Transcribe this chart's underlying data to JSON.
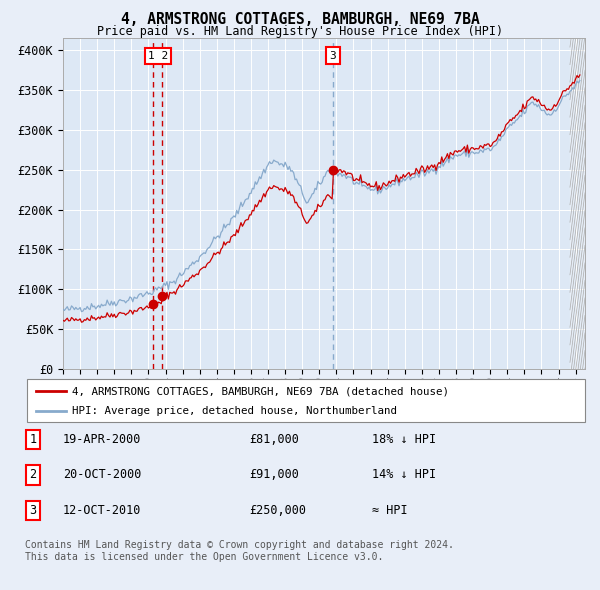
{
  "title": "4, ARMSTRONG COTTAGES, BAMBURGH, NE69 7BA",
  "subtitle": "Price paid vs. HM Land Registry's House Price Index (HPI)",
  "legend_property": "4, ARMSTRONG COTTAGES, BAMBURGH, NE69 7BA (detached house)",
  "legend_hpi": "HPI: Average price, detached house, Northumberland",
  "transactions": [
    {
      "num": 1,
      "date": "19-APR-2000",
      "price": 81000,
      "hpi_rel": "18% ↓ HPI"
    },
    {
      "num": 2,
      "date": "20-OCT-2000",
      "price": 91000,
      "hpi_rel": "14% ↓ HPI"
    },
    {
      "num": 3,
      "date": "12-OCT-2010",
      "price": 250000,
      "hpi_rel": "≈ HPI"
    }
  ],
  "t_dates": [
    2000.29,
    2000.8,
    2010.78
  ],
  "sale_prices": [
    81000,
    91000,
    250000
  ],
  "fig_bg": "#e8eef8",
  "plot_bg": "#dde8f5",
  "grid_color": "#ffffff",
  "red_color": "#cc0000",
  "blue_color": "#88aacc",
  "y_ticks": [
    0,
    50000,
    100000,
    150000,
    200000,
    250000,
    300000,
    350000,
    400000
  ],
  "y_labels": [
    "£0",
    "£50K",
    "£100K",
    "£150K",
    "£200K",
    "£250K",
    "£300K",
    "£350K",
    "£400K"
  ],
  "footnote_line1": "Contains HM Land Registry data © Crown copyright and database right 2024.",
  "footnote_line2": "This data is licensed under the Open Government Licence v3.0."
}
